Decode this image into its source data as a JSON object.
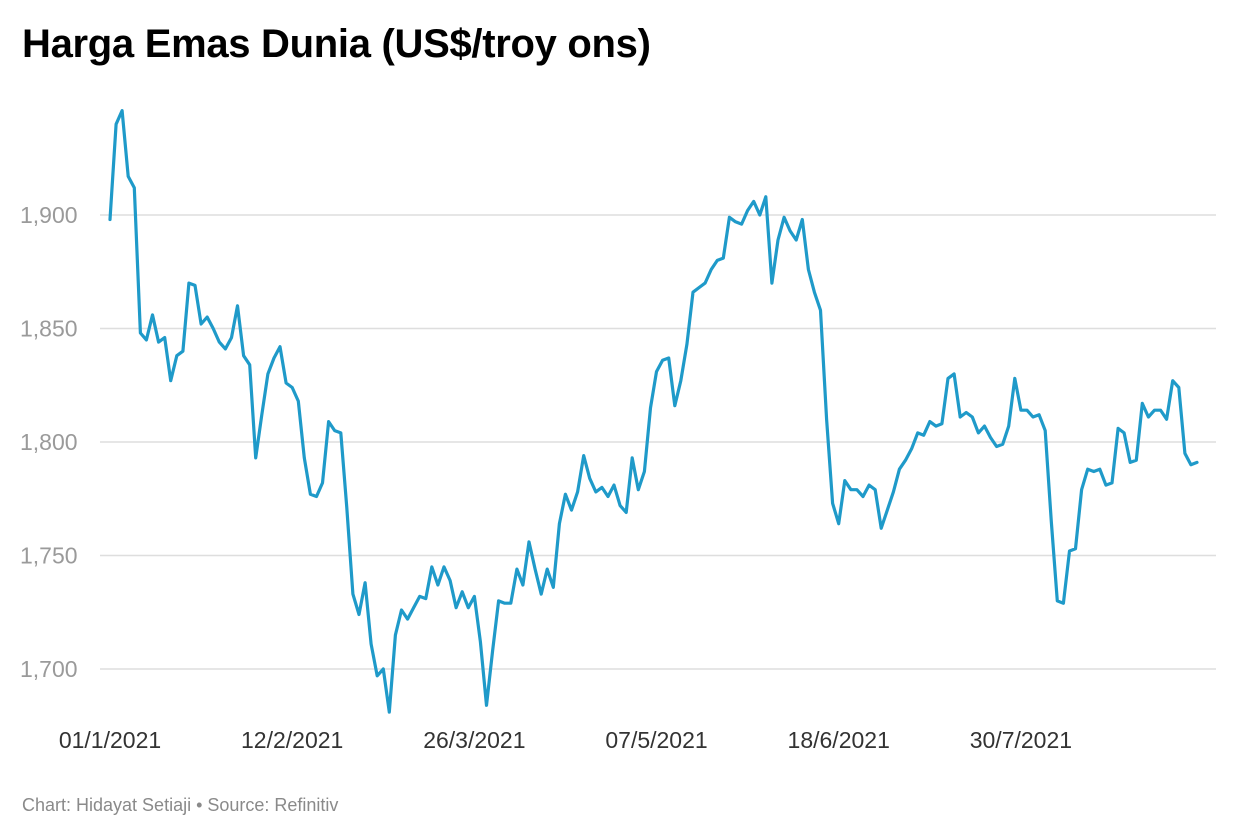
{
  "title": "Harga Emas Dunia (US$/troy ons)",
  "footer": "Chart: Hidayat Setiaji • Source: Refinitiv",
  "colors": {
    "line": "#1f9ac9",
    "grid": "#dedede",
    "ytick": "#9a9a9a",
    "xtick": "#333333"
  },
  "chart_data": {
    "type": "line",
    "title": "Harga Emas Dunia (US$/troy ons)",
    "xlabel": "",
    "ylabel": "",
    "ylim": [
      1680,
      1945
    ],
    "yticks": [
      1700,
      1750,
      1800,
      1850,
      1900
    ],
    "ytick_labels": [
      "1,700",
      "1,750",
      "1,800",
      "1,850",
      "1,900"
    ],
    "xticks": [
      {
        "label": "01/1/2021",
        "index": 0
      },
      {
        "label": "12/2/2021",
        "index": 30
      },
      {
        "label": "26/3/2021",
        "index": 60
      },
      {
        "label": "07/5/2021",
        "index": 90
      },
      {
        "label": "18/6/2021",
        "index": 120
      },
      {
        "label": "30/7/2021",
        "index": 150
      }
    ],
    "grid": true,
    "legend": "none",
    "series": [
      {
        "values": [
          1898,
          1940,
          1946,
          1917,
          1912,
          1848,
          1845,
          1856,
          1844,
          1846,
          1827,
          1838,
          1840,
          1870,
          1869,
          1852,
          1855,
          1850,
          1844,
          1841,
          1846,
          1860,
          1838,
          1834,
          1793,
          1812,
          1830,
          1837,
          1842,
          1826,
          1824,
          1818,
          1793,
          1777,
          1776,
          1782,
          1809,
          1805,
          1804,
          1771,
          1733,
          1724,
          1738,
          1711,
          1697,
          1700,
          1681,
          1715,
          1726,
          1722,
          1727,
          1732,
          1731,
          1745,
          1737,
          1745,
          1739,
          1727,
          1734,
          1727,
          1732,
          1712,
          1684,
          1708,
          1730,
          1729,
          1729,
          1744,
          1737,
          1756,
          1744,
          1733,
          1744,
          1736,
          1764,
          1777,
          1770,
          1778,
          1794,
          1784,
          1778,
          1780,
          1776,
          1781,
          1772,
          1769,
          1793,
          1779,
          1787,
          1815,
          1831,
          1836,
          1837,
          1816,
          1827,
          1843,
          1866,
          1868,
          1870,
          1876,
          1880,
          1881,
          1899,
          1897,
          1896,
          1902,
          1906,
          1900,
          1908,
          1870,
          1889,
          1899,
          1893,
          1889,
          1898,
          1876,
          1866,
          1858,
          1810,
          1773,
          1764,
          1783,
          1779,
          1779,
          1776,
          1781,
          1779,
          1762,
          1770,
          1778,
          1788,
          1792,
          1797,
          1804,
          1803,
          1809,
          1807,
          1808,
          1828,
          1830,
          1811,
          1813,
          1811,
          1804,
          1807,
          1802,
          1798,
          1799,
          1807,
          1828,
          1814,
          1814,
          1811,
          1812,
          1805,
          1765,
          1730,
          1729,
          1752,
          1753,
          1779,
          1788,
          1787,
          1788,
          1781,
          1782,
          1806,
          1804,
          1791,
          1792,
          1817,
          1811,
          1814,
          1814,
          1810,
          1827,
          1824,
          1795,
          1790,
          1791
        ]
      }
    ]
  }
}
